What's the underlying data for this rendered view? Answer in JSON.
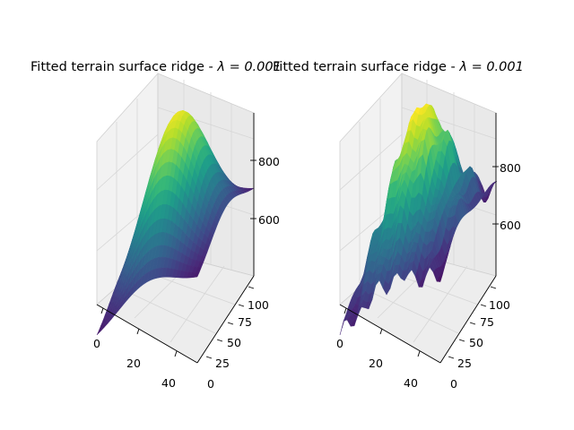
{
  "chart_data": [
    {
      "type": "surface",
      "title": "Fitted terrain surface ridge - λ = 0.001",
      "title_text": "Fitted terrain surface ridge - ",
      "title_lambda": "λ = 0.001",
      "colormap": "viridis",
      "x_ticks": [
        "0",
        "20",
        "40"
      ],
      "y_ticks": [
        "0",
        "25",
        "50",
        "75",
        "100"
      ],
      "z_ticks": [
        "600",
        "800"
      ],
      "xlim": [
        0,
        50
      ],
      "ylim": [
        0,
        110
      ],
      "zlim": [
        470,
        900
      ],
      "grid": true,
      "surface": "smooth"
    },
    {
      "type": "surface",
      "title": "Fitted terrain surface ridge - λ = 0.001",
      "title_text": "Fitted terrain surface ridge - ",
      "title_lambda": "λ = 0.001",
      "colormap": "viridis",
      "x_ticks": [
        "0",
        "20",
        "40"
      ],
      "y_ticks": [
        "0",
        "25",
        "50",
        "75",
        "100"
      ],
      "z_ticks": [
        "600",
        "800"
      ],
      "xlim": [
        0,
        50
      ],
      "ylim": [
        0,
        110
      ],
      "zlim": [
        470,
        900
      ],
      "grid": true,
      "surface": "bumpy"
    }
  ]
}
